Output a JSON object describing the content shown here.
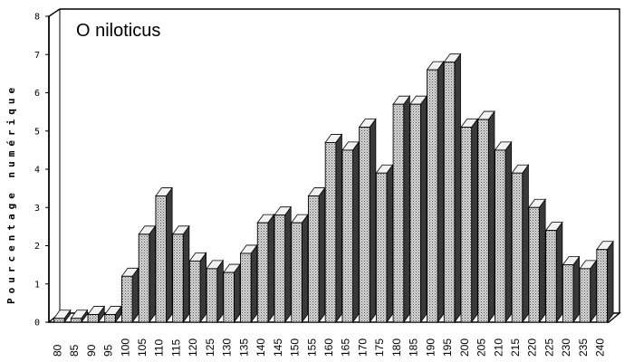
{
  "chart_data": {
    "type": "bar",
    "title": "O niloticus",
    "ylabel": "Pourcentage numérique",
    "xlabel": "",
    "categories": [
      "80",
      "85",
      "90",
      "95",
      "100",
      "105",
      "110",
      "115",
      "120",
      "125",
      "130",
      "135",
      "140",
      "145",
      "150",
      "155",
      "160",
      "165",
      "170",
      "175",
      "180",
      "185",
      "190",
      "195",
      "200",
      "205",
      "210",
      "215",
      "220",
      "225",
      "230",
      "235",
      "240"
    ],
    "values": [
      0.1,
      0.1,
      0.2,
      0.2,
      1.2,
      2.3,
      3.3,
      2.3,
      1.6,
      1.4,
      1.3,
      1.8,
      2.6,
      2.8,
      2.6,
      3.3,
      4.7,
      4.5,
      5.1,
      3.9,
      5.7,
      5.7,
      6.6,
      6.8,
      5.1,
      5.3,
      4.5,
      3.9,
      3.0,
      2.4,
      1.5,
      1.4,
      1.9
    ],
    "ylim": [
      0,
      8
    ],
    "yticks": [
      "0",
      "1",
      "2",
      "3",
      "4",
      "5",
      "6",
      "7",
      "8"
    ],
    "grid": false,
    "colors": {
      "front": "#c8c8c8",
      "top": "#f2f2f2",
      "side": "#3a3a3a",
      "edge": "#000000"
    }
  }
}
